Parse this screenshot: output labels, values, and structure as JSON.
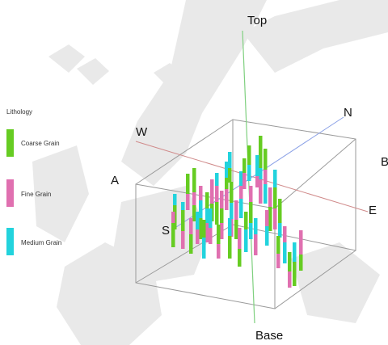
{
  "legend": {
    "title": "Lithology",
    "items": [
      {
        "label": "Coarse Grain",
        "color": "#66cc22"
      },
      {
        "label": "Fine Grain",
        "color": "#e070b0"
      },
      {
        "label": "Medium Grain",
        "color": "#22d3dd"
      }
    ]
  },
  "axes": {
    "top": "Top",
    "base": "Base",
    "north": "N",
    "south": "S",
    "east": "E",
    "west": "W",
    "a_left": "A",
    "b_right": "B"
  },
  "colors": {
    "box": "#9a9a9a",
    "vertical_axis": "#7fd07f",
    "ns_line": "#8aa0e6",
    "ew_line": "#d08a8a",
    "watermark": "#dcdcdc"
  }
}
